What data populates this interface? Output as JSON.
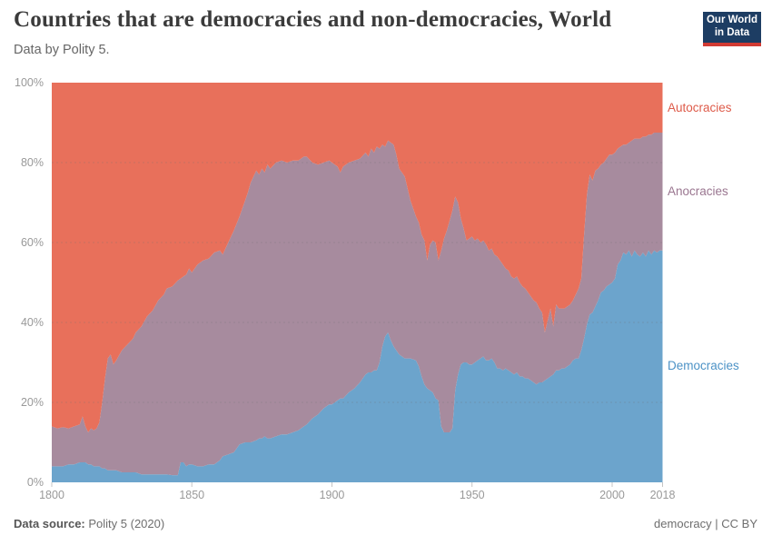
{
  "header": {
    "title": "Countries that are democracies and non-democracies, World",
    "subtitle": "Data by Polity 5."
  },
  "logo": {
    "line1": "Our World",
    "line2": "in Data",
    "bg_color": "#1d3d63",
    "bar_color": "#d23b33"
  },
  "chart_data": {
    "type": "area",
    "stacked": true,
    "normalized": true,
    "unit": "%",
    "title": "Countries that are democracies and non-democracies, World",
    "xlabel": "",
    "ylabel": "",
    "x_range": [
      1800,
      2018
    ],
    "ylim": [
      0,
      100
    ],
    "grid": "dashed-horizontal",
    "legend_position": "right-inline-colored-text",
    "y_ticks": [
      0,
      20,
      40,
      60,
      80,
      100
    ],
    "y_tick_labels": [
      "0%",
      "20%",
      "40%",
      "60%",
      "80%",
      "100%"
    ],
    "x_ticks": [
      1800,
      1850,
      1900,
      1950,
      2000,
      2018
    ],
    "x_tick_labels": [
      "1800",
      "1850",
      "1900",
      "1950",
      "2000",
      "2018"
    ],
    "x": [
      1800,
      1802,
      1804,
      1806,
      1808,
      1810,
      1811,
      1812,
      1813,
      1814,
      1815,
      1816,
      1817,
      1818,
      1819,
      1820,
      1821,
      1822,
      1823,
      1825,
      1827,
      1829,
      1830,
      1832,
      1834,
      1836,
      1838,
      1840,
      1841,
      1843,
      1845,
      1846,
      1847,
      1848,
      1849,
      1850,
      1852,
      1854,
      1856,
      1858,
      1860,
      1861,
      1863,
      1865,
      1867,
      1869,
      1870,
      1871,
      1873,
      1874,
      1875,
      1876,
      1877,
      1878,
      1880,
      1882,
      1884,
      1886,
      1888,
      1890,
      1891,
      1893,
      1895,
      1897,
      1899,
      1900,
      1902,
      1903,
      1904,
      1906,
      1908,
      1910,
      1912,
      1913,
      1914,
      1915,
      1916,
      1917,
      1918,
      1919,
      1920,
      1921,
      1922,
      1923,
      1924,
      1925,
      1926,
      1928,
      1930,
      1931,
      1932,
      1933,
      1934,
      1935,
      1936,
      1937,
      1938,
      1939,
      1940,
      1941,
      1942,
      1943,
      1944,
      1945,
      1946,
      1947,
      1948,
      1949,
      1950,
      1951,
      1952,
      1953,
      1954,
      1955,
      1956,
      1957,
      1958,
      1959,
      1960,
      1961,
      1962,
      1963,
      1964,
      1965,
      1966,
      1967,
      1968,
      1969,
      1970,
      1971,
      1972,
      1973,
      1974,
      1975,
      1976,
      1977,
      1978,
      1979,
      1980,
      1981,
      1982,
      1983,
      1984,
      1985,
      1986,
      1987,
      1988,
      1989,
      1990,
      1991,
      1992,
      1993,
      1994,
      1995,
      1996,
      1997,
      1998,
      1999,
      2000,
      2001,
      2002,
      2003,
      2004,
      2005,
      2006,
      2007,
      2008,
      2009,
      2010,
      2011,
      2012,
      2013,
      2014,
      2015,
      2016,
      2017,
      2018
    ],
    "series": [
      {
        "name": "Democracies",
        "color": "#6ca4cc",
        "label_color": "#4c92c6",
        "values": [
          4,
          4,
          4,
          4.5,
          4.5,
          5,
          5,
          5,
          4.5,
          4.5,
          4,
          4,
          4,
          3.5,
          3.5,
          3,
          3,
          3,
          3,
          2.5,
          2.5,
          2.5,
          2.5,
          2,
          2,
          2,
          2,
          2,
          2,
          1.8,
          1.8,
          5,
          5,
          4,
          4.5,
          4.5,
          4,
          4,
          4.5,
          4.5,
          5.5,
          6.5,
          7,
          7.5,
          9.5,
          10,
          10,
          10,
          10.5,
          11,
          11,
          11.5,
          11,
          11,
          11.5,
          12,
          12,
          12.5,
          13,
          14,
          14.5,
          16,
          17,
          18.5,
          19.5,
          19.5,
          20.5,
          21,
          21,
          22.5,
          23.5,
          25,
          27,
          27.5,
          27.5,
          28,
          28,
          30,
          34,
          36.5,
          37.5,
          35.5,
          34,
          33,
          32,
          31.5,
          31,
          31,
          30.5,
          29,
          26.5,
          24.5,
          23.5,
          23,
          22.5,
          21,
          20.5,
          14,
          12.5,
          12.5,
          12.5,
          13.5,
          23,
          27,
          29.5,
          30,
          30,
          29.5,
          29.5,
          30,
          30.5,
          31,
          31.5,
          30.5,
          30.5,
          31,
          30,
          28.5,
          28.5,
          28,
          28.5,
          28,
          27.5,
          27,
          27.5,
          26.5,
          26.5,
          26,
          26,
          25.5,
          25,
          24.5,
          25,
          25,
          25.5,
          26,
          26.5,
          27,
          28,
          28,
          28.5,
          28.5,
          29,
          29.5,
          30.5,
          31,
          31,
          33,
          36,
          39.5,
          42,
          42.5,
          44,
          45.5,
          47.5,
          48,
          49,
          49.5,
          50,
          51,
          54.5,
          55.5,
          57.5,
          57,
          58,
          56.5,
          58,
          57,
          56.5,
          57.5,
          56.5,
          58,
          57,
          58,
          57.5,
          58,
          58
        ]
      },
      {
        "name": "Anocracies",
        "color": "#a78b9e",
        "label_color": "#9a7690",
        "values": [
          10,
          9.5,
          9.8,
          9,
          9.5,
          9.5,
          11.5,
          9,
          8,
          9,
          9,
          9.5,
          11,
          16.5,
          22.5,
          28,
          29,
          26.5,
          27.5,
          30.5,
          32,
          33.5,
          35,
          37,
          39.5,
          41,
          43.5,
          45,
          46.5,
          47.2,
          48.7,
          46,
          46.5,
          48,
          49,
          48,
          50.5,
          51.5,
          51.5,
          53,
          52.5,
          50.5,
          53,
          55.5,
          57,
          60.5,
          62.5,
          65,
          67.5,
          66,
          67.5,
          66,
          68.5,
          67.5,
          68.5,
          68.5,
          68,
          68,
          67.5,
          67.5,
          67,
          64,
          62.5,
          61.5,
          61,
          60.5,
          58.5,
          56.5,
          58,
          57.5,
          57,
          56,
          55.5,
          54,
          56,
          54.5,
          56,
          53.5,
          50.5,
          47.5,
          48,
          49.5,
          50.5,
          49,
          46.5,
          46,
          45.5,
          39.5,
          36,
          36,
          35.5,
          36,
          32,
          36.5,
          38,
          39,
          35,
          44,
          48.5,
          50.5,
          53,
          54.5,
          48.5,
          43,
          36.5,
          33.5,
          30.5,
          31.5,
          32,
          30.5,
          30.5,
          29,
          29,
          29,
          27.5,
          27.5,
          27,
          28,
          27,
          26.5,
          25,
          25,
          24,
          24,
          24,
          23.5,
          22.5,
          22.5,
          21.5,
          21,
          20.5,
          20.5,
          18.5,
          17.5,
          12,
          14.5,
          17,
          12,
          16.5,
          15.5,
          15,
          15,
          15,
          15,
          15,
          16,
          17.5,
          18,
          26,
          32.5,
          35,
          33,
          34,
          33,
          32,
          32,
          32,
          32.5,
          32,
          31.5,
          29,
          28.5,
          27,
          27.5,
          27,
          29,
          28,
          29,
          29.5,
          29,
          30,
          29,
          30,
          29.5,
          30,
          29.5,
          29.5
        ]
      },
      {
        "name": "Autocracies",
        "color": "#e8705b",
        "label_color": "#de5b4a",
        "values": [
          86,
          86.5,
          86.2,
          86.5,
          86,
          85.5,
          83.5,
          86,
          87.5,
          86.5,
          87,
          86.5,
          85,
          80,
          74,
          69,
          68,
          70.5,
          69.5,
          67,
          65.5,
          64,
          62.5,
          61,
          58.5,
          57,
          54.5,
          53,
          51.5,
          51,
          49.5,
          49,
          48.5,
          48,
          46.5,
          47.5,
          45.5,
          44.5,
          44,
          42.5,
          42,
          43,
          40,
          37,
          33.5,
          29.5,
          27.5,
          25,
          22,
          23,
          21.5,
          22.5,
          20.5,
          21.5,
          20,
          19.5,
          20,
          19.5,
          19.5,
          18.5,
          18.5,
          20,
          20.5,
          20,
          19.5,
          20,
          21,
          22.5,
          21,
          20,
          19.5,
          19,
          17.5,
          18.5,
          16.5,
          17.5,
          16,
          16.5,
          15.5,
          16,
          14.5,
          15,
          15.5,
          18,
          21.5,
          22.5,
          23.5,
          29.5,
          33.5,
          35,
          38,
          39.5,
          44.5,
          40.5,
          39.5,
          40,
          44.5,
          42,
          39,
          37,
          34.5,
          32,
          28.5,
          30,
          34,
          36.5,
          39.5,
          39,
          38.5,
          39.5,
          39,
          40,
          39.5,
          40.5,
          42,
          41.5,
          43,
          43.5,
          44.5,
          45.5,
          46.5,
          47,
          48.5,
          49,
          48.5,
          50,
          51,
          51.5,
          52.5,
          53.5,
          54.5,
          55,
          56.5,
          57.5,
          62.5,
          59.5,
          56.5,
          61,
          55.5,
          56.5,
          56.5,
          56.5,
          56,
          55.5,
          54.5,
          53,
          51.5,
          49,
          38,
          28,
          23,
          24.5,
          22,
          21.5,
          20.5,
          20,
          19,
          18,
          18,
          17.5,
          16.5,
          16,
          15.5,
          15.5,
          15,
          14.5,
          14,
          14,
          14,
          13.5,
          13.5,
          13,
          13,
          12.5,
          12.5,
          12.5,
          12.5
        ]
      }
    ]
  },
  "footer": {
    "source_label": "Data source:",
    "source_value": "Polity 5 (2020)",
    "slug": "democracy",
    "separator": "|",
    "license": "CC BY"
  }
}
